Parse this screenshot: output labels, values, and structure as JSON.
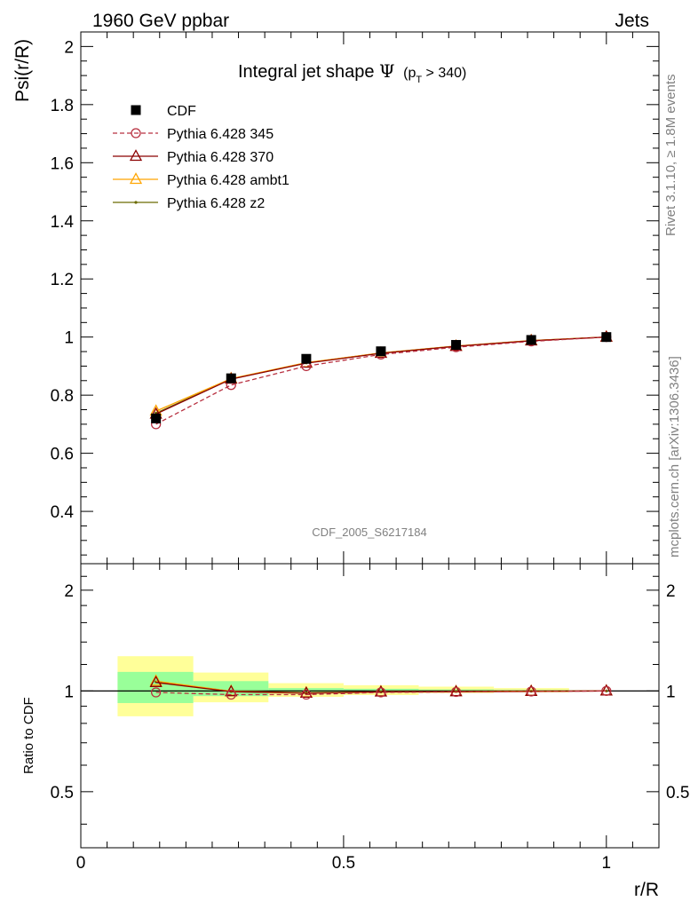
{
  "header": {
    "left": "1960 GeV ppbar",
    "right": "Jets"
  },
  "side_text": {
    "upper": "Rivet 3.1.10, ≥ 1.8M events",
    "lower": "mcplots.cern.ch [arXiv:1306.3436]"
  },
  "watermark": "CDF_2005_S6217184",
  "chart_data": [
    {
      "type": "line",
      "title": "Integral jet shape",
      "title_symbol": "Ψ",
      "title_cut_prefix": "(p",
      "title_cut_sub": "T",
      "title_cut_suffix": " > 340)",
      "ylabel": "Psi(r/R)",
      "xlabel": "r/R",
      "xlim": [
        0,
        1.1
      ],
      "ylim": [
        0.22,
        2.05
      ],
      "yticks": [
        0.4,
        0.6,
        0.8,
        1,
        1.2,
        1.4,
        1.6,
        1.8,
        2
      ],
      "ytick_labels": [
        "0.4",
        "0.6",
        "0.8",
        "1",
        "1.2",
        "1.4",
        "1.6",
        "1.8",
        "2"
      ],
      "grid": false,
      "legend_position": "top-left",
      "x": [
        0.143,
        0.286,
        0.429,
        0.571,
        0.714,
        0.857,
        1.0
      ],
      "series": [
        {
          "name": "CDF",
          "color": "#000000",
          "marker": "filled-square",
          "values": [
            0.72,
            0.858,
            0.925,
            0.951,
            0.973,
            0.99,
            1.0
          ]
        },
        {
          "name": "Pythia 6.428 345",
          "color": "#b83040",
          "marker": "open-circle",
          "dashed": true,
          "values": [
            0.7,
            0.835,
            0.9,
            0.94,
            0.965,
            0.985,
            1.0
          ]
        },
        {
          "name": "Pythia 6.428 370",
          "color": "#8b0000",
          "marker": "open-triangle",
          "values": [
            0.735,
            0.855,
            0.91,
            0.944,
            0.968,
            0.987,
            1.0
          ]
        },
        {
          "name": "Pythia 6.428 ambt1",
          "color": "#ffa500",
          "marker": "open-triangle",
          "values": [
            0.745,
            0.857,
            0.912,
            0.945,
            0.969,
            0.988,
            1.0
          ]
        },
        {
          "name": "Pythia 6.428 z2",
          "color": "#6b6b00",
          "marker": "dot",
          "values": [
            0.738,
            0.856,
            0.911,
            0.945,
            0.969,
            0.988,
            1.0
          ]
        }
      ]
    },
    {
      "type": "line",
      "ylabel": "Ratio to CDF",
      "xlabel": "r/R",
      "xlim": [
        0,
        1.1
      ],
      "ylim": [
        0.34,
        2.4
      ],
      "ylog": true,
      "yticks": [
        0.5,
        1,
        2
      ],
      "ytick_labels": [
        "0.5",
        "1",
        "2"
      ],
      "xticks": [
        0,
        0.5,
        1
      ],
      "xtick_labels": [
        "0",
        "0.5",
        "1"
      ],
      "bands": {
        "edges": [
          0.07,
          0.214,
          0.357,
          0.5,
          0.643,
          0.786,
          0.929
        ],
        "outer": {
          "color": "#ffff99",
          "lo": [
            0.84,
            0.925,
            0.96,
            0.972,
            0.985,
            0.99
          ],
          "hi": [
            1.27,
            1.135,
            1.055,
            1.04,
            1.03,
            1.02
          ]
        },
        "inner": {
          "color": "#99ff99",
          "lo": [
            0.92,
            0.965,
            0.985,
            0.99,
            0.995,
            0.997
          ],
          "hi": [
            1.14,
            1.07,
            1.02,
            1.015,
            1.01,
            1.006
          ]
        }
      },
      "x": [
        0.143,
        0.286,
        0.429,
        0.571,
        0.714,
        0.857,
        1.0
      ],
      "series": [
        {
          "name": "Pythia 6.428 345",
          "color": "#b83040",
          "marker": "open-circle",
          "dashed": true,
          "values": [
            0.99,
            0.975,
            0.975,
            0.99,
            0.993,
            0.996,
            1.0
          ]
        },
        {
          "name": "Pythia 6.428 370",
          "color": "#8b0000",
          "marker": "open-triangle",
          "values": [
            1.06,
            0.995,
            0.985,
            0.993,
            0.995,
            0.997,
            1.0
          ]
        },
        {
          "name": "Pythia 6.428 ambt1",
          "color": "#ffa500",
          "marker": "open-triangle",
          "values": [
            1.07,
            0.998,
            0.987,
            0.994,
            0.996,
            0.998,
            1.0
          ]
        },
        {
          "name": "Pythia 6.428 z2",
          "color": "#6b6b00",
          "marker": "dot",
          "values": [
            1.065,
            0.997,
            0.986,
            0.993,
            0.996,
            0.998,
            1.0
          ]
        }
      ]
    }
  ]
}
